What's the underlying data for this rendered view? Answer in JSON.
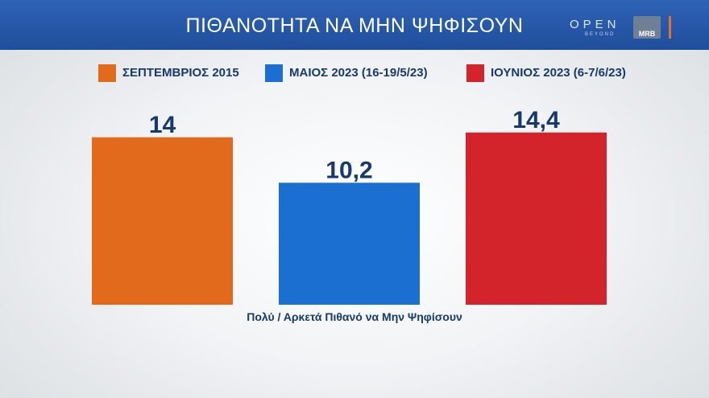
{
  "header": {
    "title": "ΠΙΘΑΝΟΤΗΤΑ ΝΑ ΜΗΝ ΨΗΦΙΣΟΥΝ",
    "logo_open": "OPEN",
    "logo_beyond": "BEYOND",
    "logo_mrb": "MRB",
    "brand_color": "#2456a6"
  },
  "chart_data": {
    "type": "bar",
    "title": "ΠΙΘΑΝΟΤΗΤΑ ΝΑ ΜΗΝ ΨΗΦΙΣΟΥΝ",
    "xlabel": "Πολύ / Αρκετά Πιθανό να Μην Ψηφίσουν",
    "ylabel": "",
    "ylim": [
      0,
      16
    ],
    "grid": false,
    "legend_position": "top",
    "series": [
      {
        "name": "ΣΕΠΤΕΜΒΡΙΟΣ 2015",
        "value": 14,
        "label": "14",
        "color": "#e26a1c"
      },
      {
        "name": "ΜΑΙΟΣ 2023 (16-19/5/23)",
        "value": 10.2,
        "label": "10,2",
        "color": "#1a6fd1"
      },
      {
        "name": "ΙΟΥΝΙΟΣ 2023 (6-7/6/23)",
        "value": 14.4,
        "label": "14,4",
        "color": "#d3232b"
      }
    ]
  }
}
